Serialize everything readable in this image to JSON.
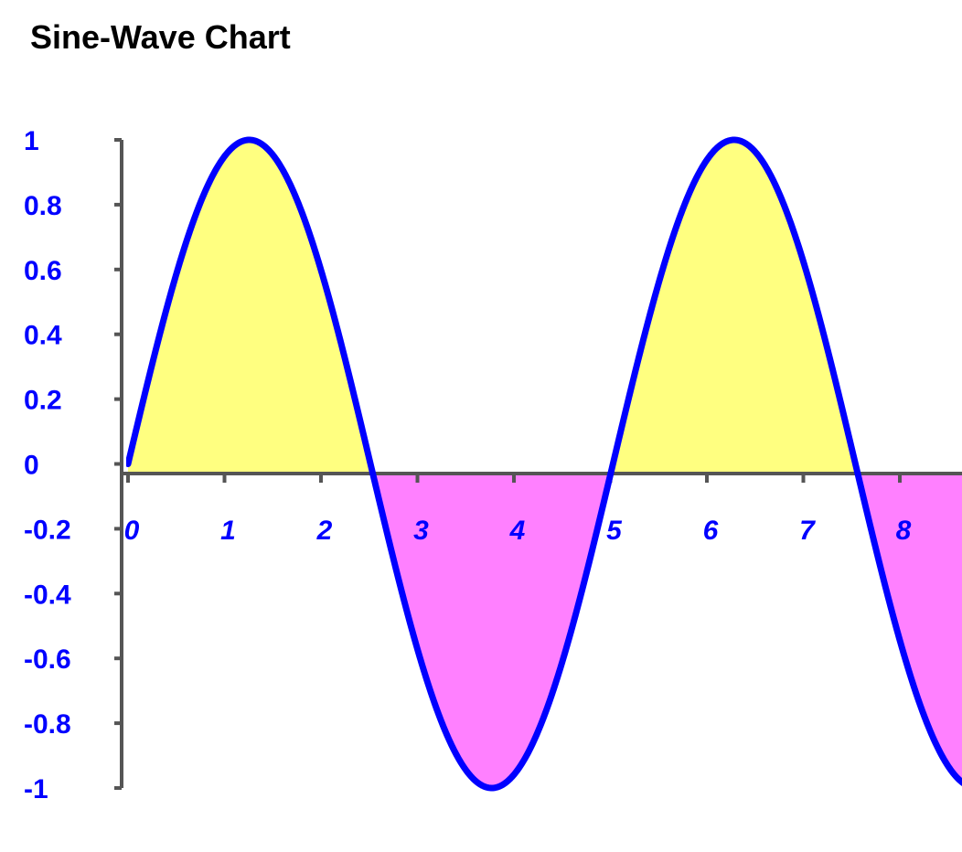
{
  "chart_data": {
    "type": "area",
    "title": "Sine-Wave Chart",
    "xlabel": "",
    "ylabel": "",
    "function": "sin",
    "x_scale": 1.25,
    "x": [
      0,
      0.5,
      1,
      1.5,
      2,
      2.5,
      3,
      3.5,
      4,
      4.5,
      5,
      5.5,
      6,
      6.5,
      7,
      7.5,
      8,
      8.5,
      9
    ],
    "y": [
      0.0,
      0.383,
      0.707,
      0.924,
      1.0,
      0.924,
      0.707,
      0.383,
      0.0,
      -0.383,
      -0.707,
      -0.924,
      -1.0,
      -0.924,
      -0.707,
      -0.383,
      0.0,
      0.383,
      0.707
    ],
    "xlim": [
      0,
      8.75
    ],
    "ylim": [
      -1,
      1
    ],
    "x_ticks": [
      "0",
      "1",
      "2",
      "3",
      "4",
      "5",
      "6",
      "7",
      "8"
    ],
    "y_ticks": [
      "1",
      "0.8",
      "0.6",
      "0.4",
      "0.2",
      "0",
      "-0.2",
      "-0.4",
      "-0.6",
      "-0.8",
      "-1"
    ],
    "grid": false,
    "colors": {
      "line": "#0000ff",
      "positive_fill": "#ffff80",
      "negative_fill": "#ff80ff",
      "axis": "#555555",
      "tick_label": "#0000ff",
      "title": "#000000"
    }
  }
}
